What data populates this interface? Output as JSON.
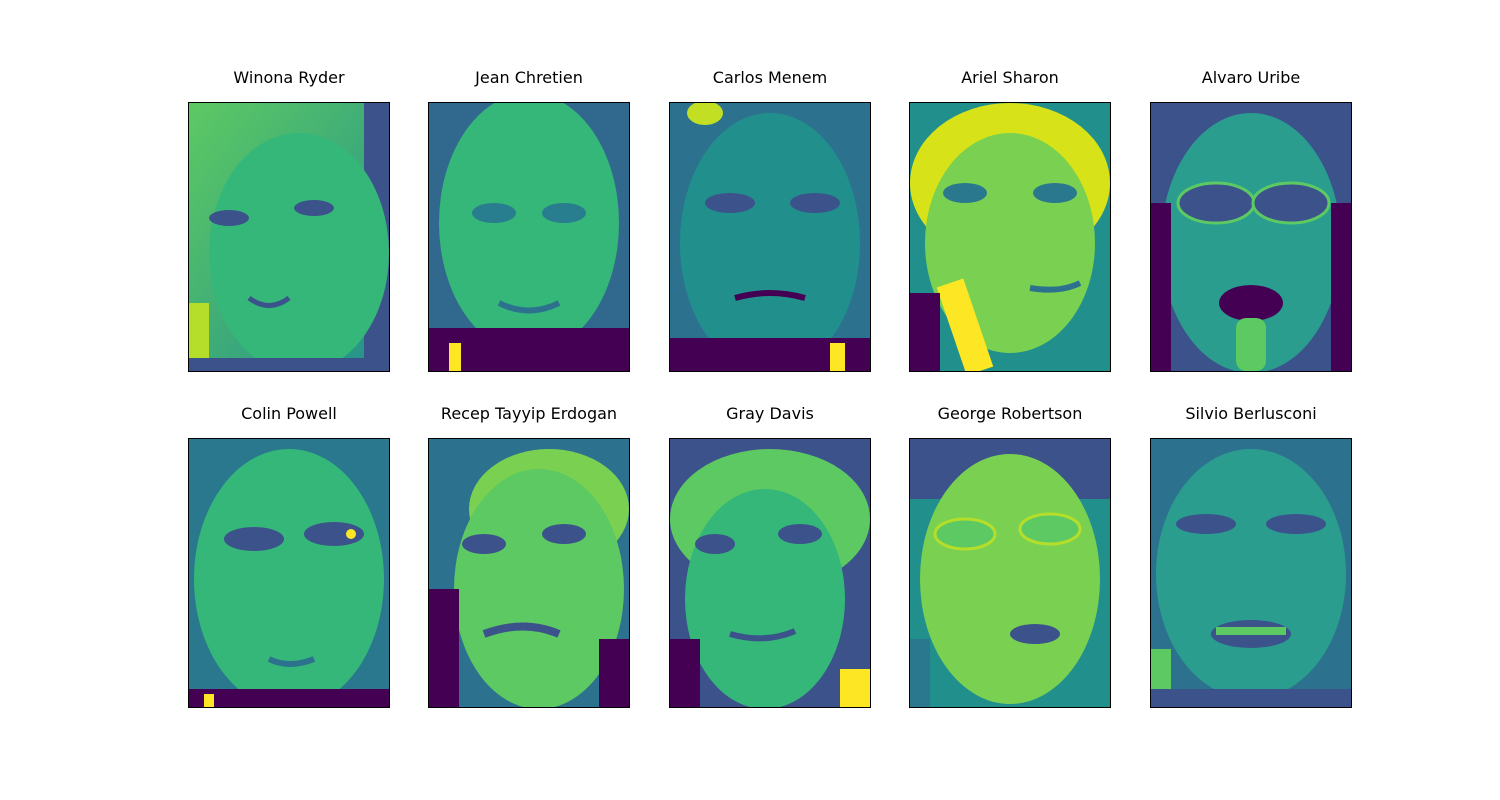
{
  "figure": {
    "colormap": "viridis",
    "colors": {
      "dark": "#440154",
      "mid_dark": "#3b528b",
      "mid": "#21908d",
      "mid_light": "#5dc963",
      "bright": "#fde725"
    },
    "rows": [
      {
        "panels": [
          {
            "name": "Winona Ryder"
          },
          {
            "name": "Jean Chretien"
          },
          {
            "name": "Carlos Menem"
          },
          {
            "name": "Ariel Sharon"
          },
          {
            "name": "Alvaro Uribe"
          }
        ]
      },
      {
        "panels": [
          {
            "name": "Colin Powell"
          },
          {
            "name": "Recep Tayyip Erdogan"
          },
          {
            "name": "Gray Davis"
          },
          {
            "name": "George Robertson"
          },
          {
            "name": "Silvio Berlusconi"
          }
        ]
      }
    ]
  }
}
